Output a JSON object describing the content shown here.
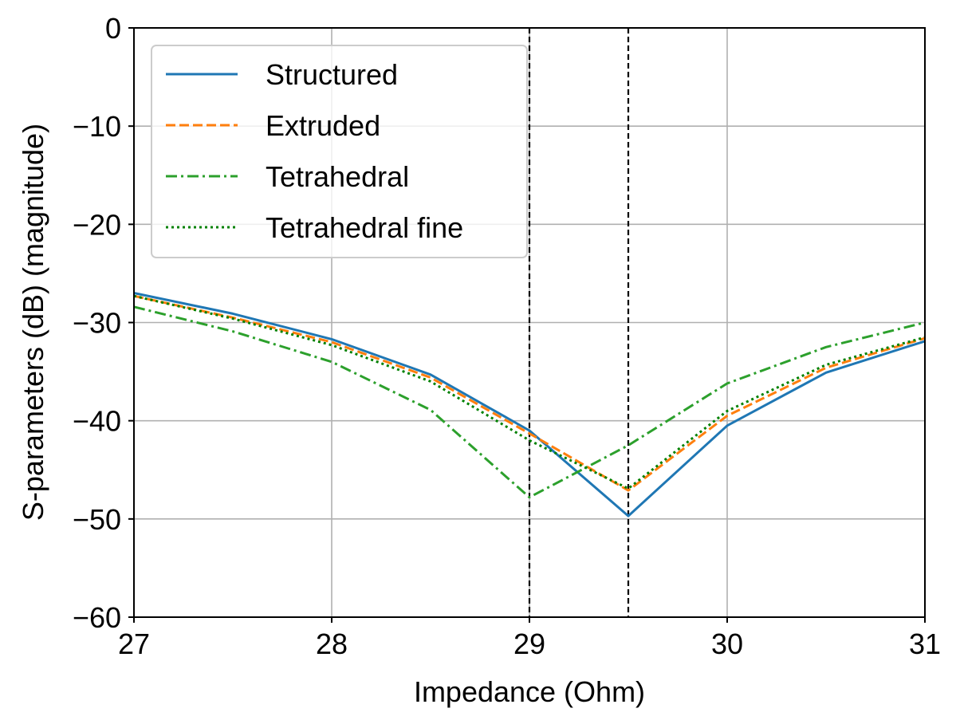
{
  "chart_data": {
    "type": "line",
    "xlabel": "Impedance (Ohm)",
    "ylabel": "S-parameters (dB) (magnitude)",
    "xlim": [
      27,
      31
    ],
    "ylim": [
      -60,
      0
    ],
    "xticks": [
      27,
      28,
      29,
      30,
      31
    ],
    "yticks": [
      0,
      -10,
      -20,
      -30,
      -40,
      -50,
      -60
    ],
    "xtick_labels": [
      "27",
      "28",
      "29",
      "30",
      "31"
    ],
    "ytick_labels": [
      "0",
      "−10",
      "−20",
      "−30",
      "−40",
      "−50",
      "−60"
    ],
    "grid": true,
    "legend_position": "upper-left",
    "vlines": [
      29,
      29.5
    ],
    "x": [
      27,
      27.5,
      28,
      28.5,
      29,
      29.5,
      30,
      30.5,
      31
    ],
    "series": [
      {
        "name": "Structured",
        "color": "#1f77b4",
        "style": "solid",
        "values": [
          -27.0,
          -29.1,
          -31.7,
          -35.3,
          -41.0,
          -49.7,
          -40.5,
          -35.1,
          -31.9
        ]
      },
      {
        "name": "Extruded",
        "color": "#ff7f0e",
        "style": "dashed",
        "values": [
          -27.3,
          -29.5,
          -32.0,
          -35.6,
          -41.3,
          -47.1,
          -39.5,
          -34.6,
          -31.6
        ]
      },
      {
        "name": "Tetrahedral",
        "color": "#2ca02c",
        "style": "dashdot",
        "values": [
          -28.4,
          -30.9,
          -34.0,
          -38.9,
          -47.8,
          -42.5,
          -36.2,
          -32.5,
          -30.0
        ]
      },
      {
        "name": "Tetrahedral fine",
        "color": "#008000",
        "style": "dotted",
        "values": [
          -27.3,
          -29.6,
          -32.3,
          -36.0,
          -42.0,
          -46.9,
          -39.0,
          -34.3,
          -31.5
        ]
      }
    ]
  }
}
